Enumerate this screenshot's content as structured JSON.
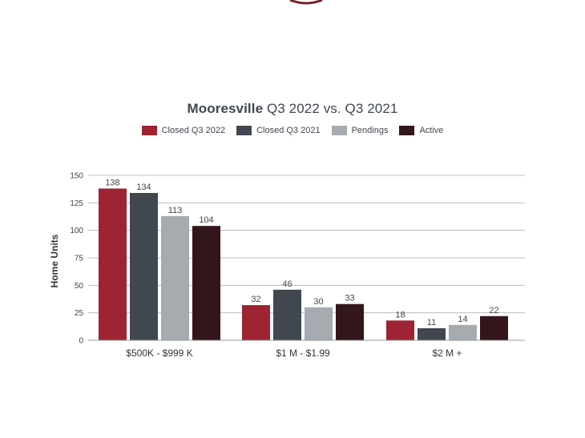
{
  "title": {
    "bold": "Mooresville",
    "rest": " Q3 2022 vs. Q3 2021"
  },
  "colors": {
    "closed_2022": "#9e2433",
    "closed_2021": "#41474f",
    "pendings": "#a5abb1",
    "active": "#33161b",
    "grid": "#bdbdbd",
    "logo": "#7a1d2b"
  },
  "chart_data": {
    "type": "bar",
    "ylabel": "Home Units",
    "ylim": [
      0,
      150
    ],
    "yticks": [
      0,
      25,
      50,
      75,
      100,
      125,
      150
    ],
    "categories": [
      "$500K - $999 K",
      "$1 M - $1.99",
      "$2 M +"
    ],
    "series": [
      {
        "name": "Closed Q3 2022",
        "color": "#9e2433",
        "values": [
          138,
          32,
          18
        ]
      },
      {
        "name": "Closed Q3 2021",
        "color": "#41474f",
        "values": [
          134,
          46,
          11
        ]
      },
      {
        "name": "Pendings",
        "color": "#a5abb1",
        "values": [
          113,
          30,
          14
        ]
      },
      {
        "name": "Active",
        "color": "#33161b",
        "values": [
          104,
          33,
          22
        ]
      }
    ],
    "data_labels": [
      [
        "138",
        "32",
        "18"
      ],
      [
        "134",
        "46",
        "11"
      ],
      [
        "113",
        "30",
        "14"
      ],
      [
        "104",
        "33",
        "22"
      ]
    ],
    "grid": true,
    "legend_position": "top-center"
  }
}
